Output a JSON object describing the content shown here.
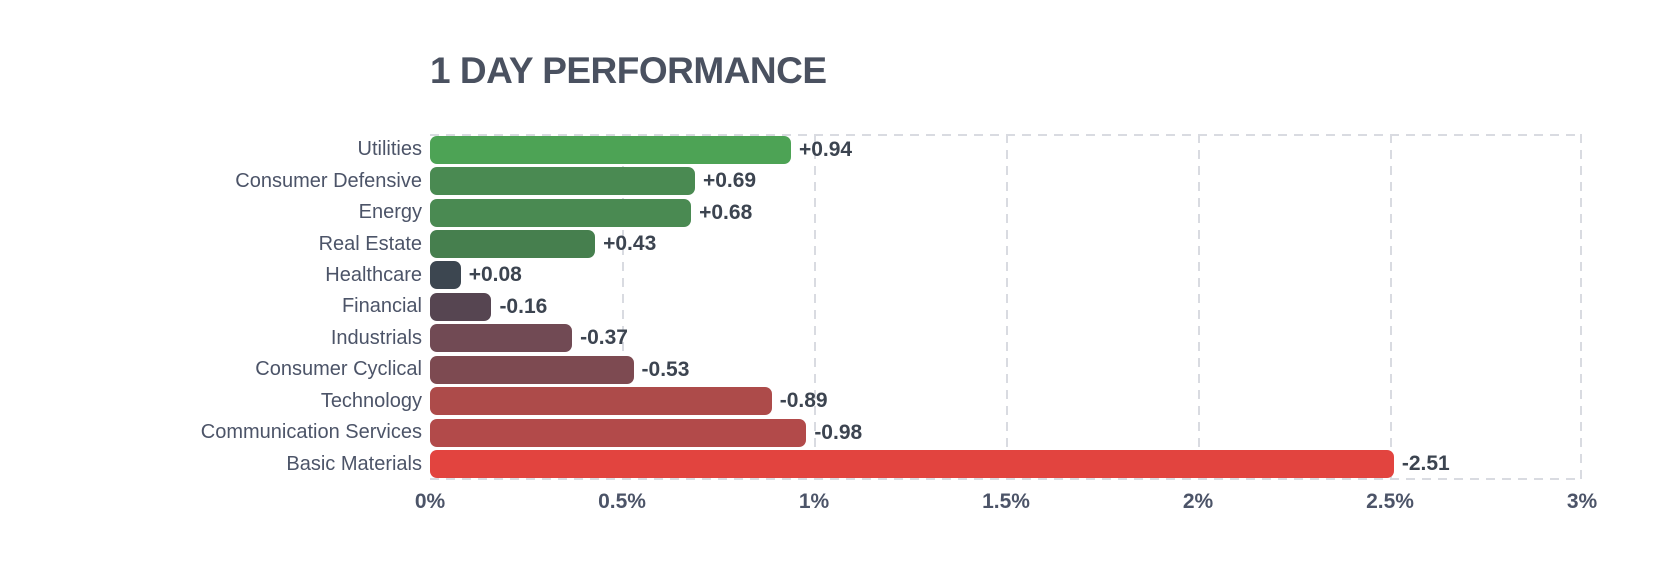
{
  "title": "1 DAY PERFORMANCE",
  "chart_data": {
    "type": "bar",
    "orientation": "horizontal",
    "title": "1 DAY PERFORMANCE",
    "categories": [
      "Utilities",
      "Consumer Defensive",
      "Energy",
      "Real Estate",
      "Healthcare",
      "Financial",
      "Industrials",
      "Consumer Cyclical",
      "Technology",
      "Communication Services",
      "Basic Materials"
    ],
    "values": [
      0.94,
      0.69,
      0.68,
      0.43,
      0.08,
      -0.16,
      -0.37,
      -0.53,
      -0.89,
      -0.98,
      -2.51
    ],
    "value_labels": [
      "+0.94",
      "+0.69",
      "+0.68",
      "+0.43",
      "+0.08",
      "-0.16",
      "-0.37",
      "-0.53",
      "-0.89",
      "-0.98",
      "-2.51"
    ],
    "bar_colors": [
      "#4da355",
      "#4a8a52",
      "#4a8a52",
      "#467f4e",
      "#3c4650",
      "#564551",
      "#714a54",
      "#7d4a51",
      "#ad4b4a",
      "#b24a4a",
      "#e2443f"
    ],
    "x_ticks": [
      "0%",
      "0.5%",
      "1%",
      "1.5%",
      "2%",
      "2.5%",
      "3%"
    ],
    "xlim": [
      0,
      3
    ],
    "xlabel": "",
    "ylabel": "",
    "bar_length_encodes": "absolute value of 1-day change in percent",
    "grid": "vertical dashed gridlines every 0.5%",
    "legend": "none"
  },
  "colors": {
    "background": "#ffffff",
    "title_text": "#4a5160",
    "category_text": "#4c5468",
    "value_text": "#3c4450",
    "tick_text": "#4c5468",
    "grid_line": "#d9dbe1",
    "positive_accent": "#4da355",
    "negative_accent": "#e2443f"
  }
}
